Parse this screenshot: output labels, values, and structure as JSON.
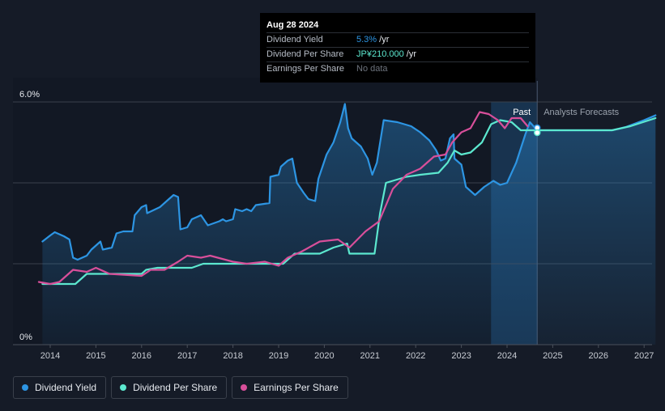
{
  "tooltip": {
    "date": "Aug 28 2024",
    "rows": [
      {
        "label": "Dividend Yield",
        "value": "5.3%",
        "unit": " /yr"
      },
      {
        "label": "Dividend Per Share",
        "value": "JP¥210.000",
        "unit": " /yr"
      },
      {
        "label": "Earnings Per Share",
        "value": "No data",
        "unit": ""
      }
    ]
  },
  "legend": [
    {
      "label": "Dividend Yield",
      "color": "#2d95e3"
    },
    {
      "label": "Dividend Per Share",
      "color": "#5ce8cf"
    },
    {
      "label": "Earnings Per Share",
      "color": "#d84f9a"
    }
  ],
  "chart_data": {
    "type": "line",
    "title": "",
    "xlabel": "",
    "ylabel": "",
    "xlim": [
      2013.6,
      2027.25
    ],
    "ylim": [
      0,
      6.0
    ],
    "y_ticks": [
      {
        "value": 6.0,
        "label": "6.0%"
      },
      {
        "value": 0,
        "label": "0%"
      }
    ],
    "gridlines": [
      6.0,
      4.0,
      2.0
    ],
    "x_ticks": [
      2014,
      2015,
      2016,
      2017,
      2018,
      2019,
      2020,
      2021,
      2022,
      2023,
      2024,
      2025,
      2026,
      2027
    ],
    "x_tick_labels": [
      "2014",
      "2015",
      "2016",
      "2017",
      "2018",
      "2019",
      "2020",
      "2021",
      "2022",
      "2023",
      "2024",
      "2025",
      "2026",
      "2027"
    ],
    "past_label": "Past",
    "forecast_label": "Analysts Forecasts",
    "past_start": 2023.65,
    "forecast_start": 2024.66,
    "series": [
      {
        "name": "Dividend Yield",
        "color": "#2d95e3",
        "points": [
          [
            2013.83,
            2.55
          ],
          [
            2014.0,
            2.7
          ],
          [
            2014.1,
            2.78
          ],
          [
            2014.3,
            2.68
          ],
          [
            2014.42,
            2.6
          ],
          [
            2014.5,
            2.15
          ],
          [
            2014.6,
            2.1
          ],
          [
            2014.8,
            2.2
          ],
          [
            2014.9,
            2.35
          ],
          [
            2015.05,
            2.5
          ],
          [
            2015.1,
            2.55
          ],
          [
            2015.15,
            2.35
          ],
          [
            2015.35,
            2.4
          ],
          [
            2015.45,
            2.75
          ],
          [
            2015.6,
            2.8
          ],
          [
            2015.8,
            2.8
          ],
          [
            2015.85,
            3.2
          ],
          [
            2016.0,
            3.4
          ],
          [
            2016.1,
            3.45
          ],
          [
            2016.12,
            3.25
          ],
          [
            2016.4,
            3.4
          ],
          [
            2016.6,
            3.6
          ],
          [
            2016.7,
            3.7
          ],
          [
            2016.8,
            3.65
          ],
          [
            2016.85,
            2.85
          ],
          [
            2017.0,
            2.9
          ],
          [
            2017.1,
            3.1
          ],
          [
            2017.2,
            3.15
          ],
          [
            2017.3,
            3.2
          ],
          [
            2017.45,
            2.95
          ],
          [
            2017.7,
            3.05
          ],
          [
            2017.78,
            3.1
          ],
          [
            2017.85,
            3.05
          ],
          [
            2018.0,
            3.1
          ],
          [
            2018.05,
            3.35
          ],
          [
            2018.2,
            3.3
          ],
          [
            2018.3,
            3.35
          ],
          [
            2018.4,
            3.3
          ],
          [
            2018.5,
            3.45
          ],
          [
            2018.8,
            3.5
          ],
          [
            2018.82,
            4.15
          ],
          [
            2019.0,
            4.2
          ],
          [
            2019.05,
            4.4
          ],
          [
            2019.2,
            4.55
          ],
          [
            2019.3,
            4.6
          ],
          [
            2019.4,
            4.0
          ],
          [
            2019.55,
            3.75
          ],
          [
            2019.65,
            3.6
          ],
          [
            2019.8,
            3.55
          ],
          [
            2019.87,
            4.1
          ],
          [
            2020.05,
            4.7
          ],
          [
            2020.2,
            5.0
          ],
          [
            2020.35,
            5.5
          ],
          [
            2020.45,
            5.95
          ],
          [
            2020.52,
            5.35
          ],
          [
            2020.6,
            5.1
          ],
          [
            2020.8,
            4.9
          ],
          [
            2020.95,
            4.6
          ],
          [
            2021.05,
            4.2
          ],
          [
            2021.15,
            4.5
          ],
          [
            2021.3,
            5.55
          ],
          [
            2021.6,
            5.5
          ],
          [
            2021.9,
            5.4
          ],
          [
            2022.1,
            5.25
          ],
          [
            2022.3,
            5.05
          ],
          [
            2022.45,
            4.8
          ],
          [
            2022.55,
            4.55
          ],
          [
            2022.65,
            4.6
          ],
          [
            2022.75,
            5.1
          ],
          [
            2022.83,
            5.2
          ],
          [
            2022.85,
            4.6
          ],
          [
            2023.0,
            4.45
          ],
          [
            2023.1,
            3.9
          ],
          [
            2023.3,
            3.7
          ],
          [
            2023.5,
            3.9
          ],
          [
            2023.7,
            4.05
          ],
          [
            2023.85,
            3.95
          ],
          [
            2024.0,
            4.0
          ],
          [
            2024.2,
            4.5
          ],
          [
            2024.4,
            5.2
          ],
          [
            2024.5,
            5.5
          ],
          [
            2024.66,
            5.3
          ],
          [
            2025.0,
            5.3
          ],
          [
            2025.5,
            5.3
          ],
          [
            2026.0,
            5.3
          ],
          [
            2026.3,
            5.3
          ],
          [
            2026.6,
            5.38
          ],
          [
            2027.0,
            5.55
          ],
          [
            2027.25,
            5.67
          ]
        ]
      },
      {
        "name": "Dividend Per Share",
        "color": "#5ce8cf",
        "points": [
          [
            2013.83,
            1.5
          ],
          [
            2014.55,
            1.5
          ],
          [
            2014.8,
            1.75
          ],
          [
            2015.4,
            1.75
          ],
          [
            2016.0,
            1.75
          ],
          [
            2016.1,
            1.85
          ],
          [
            2016.35,
            1.9
          ],
          [
            2017.1,
            1.9
          ],
          [
            2017.35,
            2.0
          ],
          [
            2018.5,
            2.0
          ],
          [
            2019.1,
            2.0
          ],
          [
            2019.35,
            2.25
          ],
          [
            2019.9,
            2.25
          ],
          [
            2020.2,
            2.4
          ],
          [
            2020.5,
            2.5
          ],
          [
            2020.55,
            2.25
          ],
          [
            2021.1,
            2.25
          ],
          [
            2021.22,
            3.25
          ],
          [
            2021.35,
            4.0
          ],
          [
            2021.8,
            4.15
          ],
          [
            2022.1,
            4.2
          ],
          [
            2022.5,
            4.25
          ],
          [
            2022.7,
            4.5
          ],
          [
            2022.85,
            4.8
          ],
          [
            2023.0,
            4.7
          ],
          [
            2023.2,
            4.75
          ],
          [
            2023.45,
            5.0
          ],
          [
            2023.65,
            5.45
          ],
          [
            2023.85,
            5.55
          ],
          [
            2024.1,
            5.5
          ],
          [
            2024.3,
            5.3
          ],
          [
            2024.66,
            5.3
          ],
          [
            2025.0,
            5.3
          ],
          [
            2026.3,
            5.3
          ],
          [
            2026.7,
            5.4
          ],
          [
            2027.25,
            5.6
          ]
        ]
      },
      {
        "name": "Earnings Per Share",
        "color": "#d84f9a",
        "points": [
          [
            2013.75,
            1.55
          ],
          [
            2014.0,
            1.5
          ],
          [
            2014.2,
            1.55
          ],
          [
            2014.5,
            1.85
          ],
          [
            2014.8,
            1.8
          ],
          [
            2015.0,
            1.9
          ],
          [
            2015.3,
            1.75
          ],
          [
            2016.0,
            1.7
          ],
          [
            2016.2,
            1.85
          ],
          [
            2016.5,
            1.85
          ],
          [
            2016.8,
            2.05
          ],
          [
            2017.0,
            2.2
          ],
          [
            2017.3,
            2.15
          ],
          [
            2017.5,
            2.2
          ],
          [
            2018.0,
            2.05
          ],
          [
            2018.3,
            2.0
          ],
          [
            2018.7,
            2.05
          ],
          [
            2019.0,
            1.95
          ],
          [
            2019.2,
            2.15
          ],
          [
            2019.5,
            2.3
          ],
          [
            2019.9,
            2.55
          ],
          [
            2020.3,
            2.6
          ],
          [
            2020.55,
            2.4
          ],
          [
            2020.9,
            2.8
          ],
          [
            2021.2,
            3.05
          ],
          [
            2021.5,
            3.85
          ],
          [
            2021.8,
            4.2
          ],
          [
            2022.1,
            4.35
          ],
          [
            2022.4,
            4.65
          ],
          [
            2022.65,
            4.7
          ],
          [
            2022.8,
            5.0
          ],
          [
            2023.0,
            5.25
          ],
          [
            2023.2,
            5.35
          ],
          [
            2023.4,
            5.75
          ],
          [
            2023.6,
            5.7
          ],
          [
            2023.8,
            5.55
          ],
          [
            2023.95,
            5.35
          ],
          [
            2024.1,
            5.6
          ],
          [
            2024.3,
            5.6
          ],
          [
            2024.45,
            5.4
          ]
        ]
      }
    ],
    "markers": [
      {
        "series": "Dividend Yield",
        "x": 2024.66,
        "y": 5.3
      },
      {
        "series": "Dividend Per Share",
        "x": 2024.66,
        "y": 5.3
      }
    ]
  }
}
